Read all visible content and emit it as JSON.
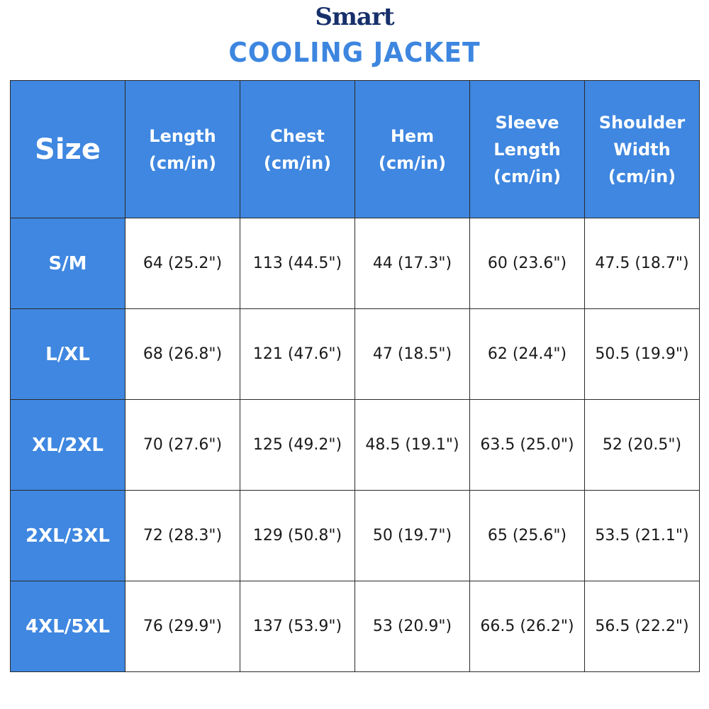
{
  "header": {
    "brand": "Smart",
    "product": "COOLING JACKET"
  },
  "table": {
    "columns": [
      "Size",
      "Length\n(cm/in)",
      "Chest\n(cm/in)",
      "Hem\n(cm/in)",
      "Sleeve\nLength\n(cm/in)",
      "Shoulder\nWidth\n(cm/in)"
    ],
    "rows": [
      [
        "S/M",
        "64 (25.2\")",
        "113 (44.5\")",
        "44 (17.3\")",
        "60 (23.6\")",
        "47.5 (18.7\")"
      ],
      [
        "L/XL",
        "68 (26.8\")",
        "121 (47.6\")",
        "47 (18.5\")",
        "62 (24.4\")",
        "50.5 (19.9\")"
      ],
      [
        "XL/2XL",
        "70 (27.6\")",
        "125 (49.2\")",
        "48.5 (19.1\")",
        "63.5 (25.0\")",
        "52 (20.5\")"
      ],
      [
        "2XL/3XL",
        "72 (28.3\")",
        "129 (50.8\")",
        "50 (19.7\")",
        "65 (25.6\")",
        "53.5 (21.1\")"
      ],
      [
        "4XL/5XL",
        "76 (29.9\")",
        "137 (53.9\")",
        "53 (20.9\")",
        "66.5 (26.2\")",
        "56.5 (22.2\")"
      ]
    ]
  },
  "colors": {
    "header_blue": "#3f87e0",
    "brand_navy": "#17306b",
    "border": "#2a2a2a"
  }
}
